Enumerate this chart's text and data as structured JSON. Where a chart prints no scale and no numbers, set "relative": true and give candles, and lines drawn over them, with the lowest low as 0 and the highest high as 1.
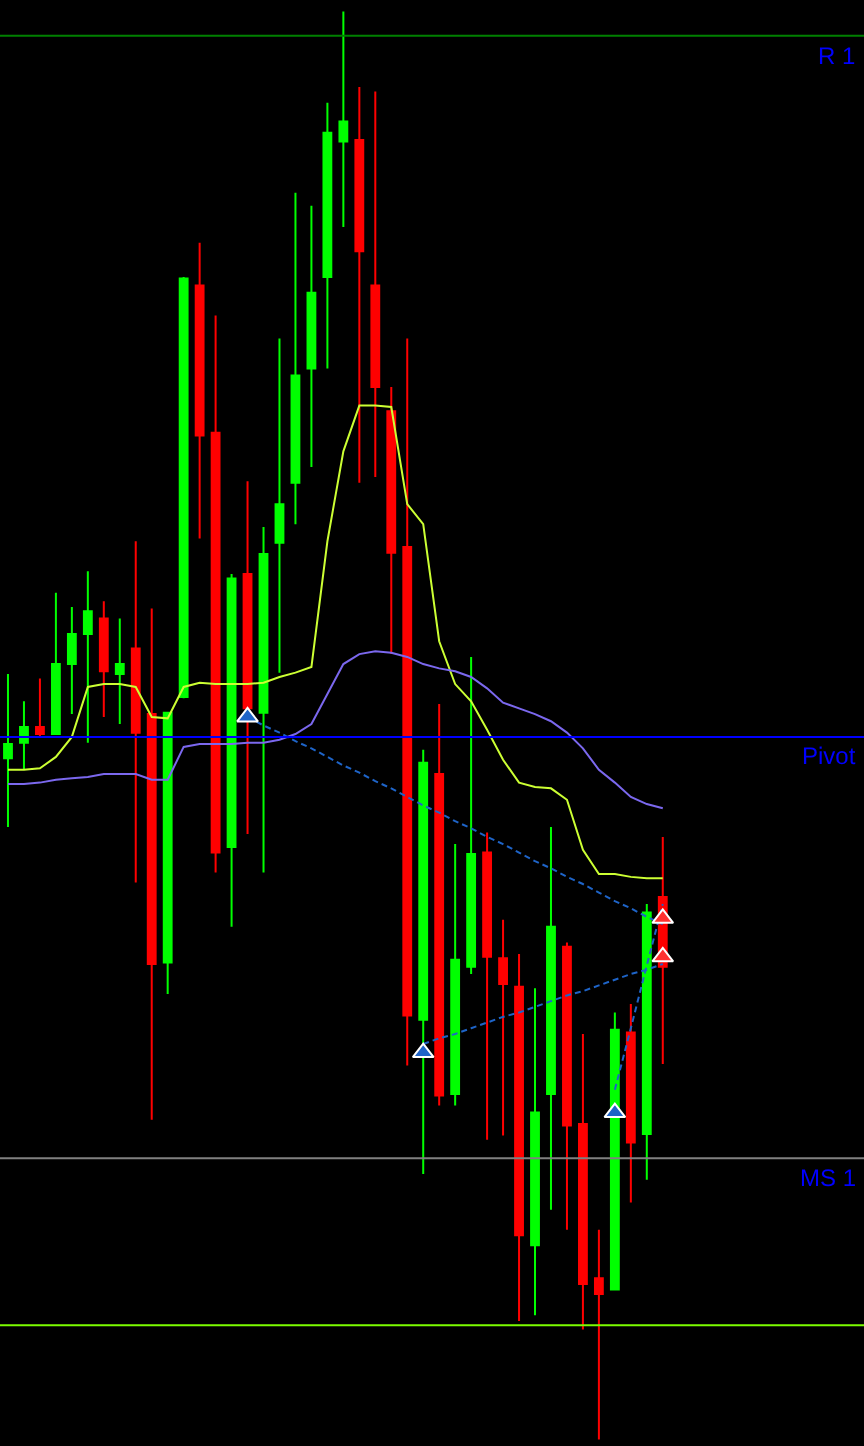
{
  "chart_data": {
    "type": "candlestick",
    "relative": true,
    "categories": [
      null,
      null,
      null,
      null,
      null,
      null,
      null,
      null,
      null,
      null,
      null,
      null,
      null,
      null,
      null,
      null,
      null,
      null,
      null,
      null,
      null,
      null,
      null,
      null,
      null,
      null,
      null,
      null,
      null,
      null,
      null,
      null,
      null,
      null,
      null,
      null,
      null,
      null,
      null,
      null,
      null,
      null
    ],
    "ohlc": [
      [
        0.477,
        0.536,
        0.429,
        0.487
      ],
      [
        0.488,
        0.517,
        0.469,
        0.499
      ],
      [
        0.499,
        0.533,
        0.492,
        0.494
      ],
      [
        0.494,
        0.593,
        0.494,
        0.543
      ],
      [
        0.543,
        0.583,
        0.508,
        0.564
      ],
      [
        0.564,
        0.608,
        0.488,
        0.58
      ],
      [
        0.575,
        0.587,
        0.506,
        0.538
      ],
      [
        0.536,
        0.575,
        0.501,
        0.543
      ],
      [
        0.554,
        0.629,
        0.39,
        0.495
      ],
      [
        0.508,
        0.582,
        0.224,
        0.333
      ],
      [
        0.334,
        0.509,
        0.312,
        0.509
      ],
      [
        0.52,
        0.814,
        0.519,
        0.813
      ],
      [
        0.808,
        0.838,
        0.631,
        0.703
      ],
      [
        0.705,
        0.787,
        0.397,
        0.411
      ],
      [
        0.415,
        0.606,
        0.359,
        0.603
      ],
      [
        0.606,
        0.671,
        0.424,
        0.512
      ],
      [
        0.509,
        0.639,
        0.397,
        0.62
      ],
      [
        0.628,
        0.771,
        0.537,
        0.655
      ],
      [
        0.67,
        0.873,
        0.641,
        0.745
      ],
      [
        0.75,
        0.864,
        0.681,
        0.803
      ],
      [
        0.814,
        0.936,
        0.75,
        0.915
      ],
      [
        0.909,
        1.0,
        0.849,
        0.923
      ],
      [
        0.91,
        0.947,
        0.67,
        0.832
      ],
      [
        0.808,
        0.944,
        0.674,
        0.737
      ],
      [
        0.72,
        0.737,
        0.55,
        0.621
      ],
      [
        0.625,
        0.771,
        0.262,
        0.297
      ],
      [
        0.294,
        0.483,
        0.186,
        0.474
      ],
      [
        0.466,
        0.515,
        0.234,
        0.241
      ],
      [
        0.242,
        0.417,
        0.234,
        0.336
      ],
      [
        0.331,
        0.548,
        0.326,
        0.41
      ],
      [
        0.411,
        0.425,
        0.21,
        0.338
      ],
      [
        0.337,
        0.364,
        0.213,
        0.319
      ],
      [
        0.317,
        0.34,
        0.083,
        0.143
      ],
      [
        0.136,
        0.316,
        0.087,
        0.229
      ],
      [
        0.242,
        0.429,
        0.161,
        0.359
      ],
      [
        0.345,
        0.348,
        0.147,
        0.22
      ],
      [
        0.221,
        0.284,
        0.077,
        0.109
      ],
      [
        0.113,
        0.147,
        0.0,
        0.102
      ],
      [
        0.105,
        0.299,
        0.105,
        0.287
      ],
      [
        0.285,
        0.305,
        0.166,
        0.208
      ],
      [
        0.214,
        0.375,
        0.182,
        0.369
      ],
      [
        0.38,
        0.422,
        0.263,
        0.331
      ]
    ],
    "colors": [
      "#00ff00",
      "#00ff00",
      "#ff0000",
      "#00ff00",
      "#00ff00",
      "#00ff00",
      "#ff0000",
      "#00ff00",
      "#ff0000",
      "#ff0000",
      "#00ff00",
      "#00ff00",
      "#ff0000",
      "#ff0000",
      "#00ff00",
      "#ff0000",
      "#00ff00",
      "#00ff00",
      "#00ff00",
      "#00ff00",
      "#00ff00",
      "#00ff00",
      "#ff0000",
      "#ff0000",
      "#ff0000",
      "#ff0000",
      "#00ff00",
      "#ff0000",
      "#00ff00",
      "#00ff00",
      "#ff0000",
      "#ff0000",
      "#ff0000",
      "#00ff00",
      "#00ff00",
      "#ff0000",
      "#ff0000",
      "#ff0000",
      "#00ff00",
      "#ff0000",
      "#00ff00",
      "#ff0000"
    ],
    "series": [
      {
        "type": "line",
        "color": "#ccff33",
        "line_style": "solid",
        "values": [
          0.469,
          0.469,
          0.47,
          0.478,
          0.492,
          0.527,
          0.529,
          0.529,
          0.527,
          0.506,
          0.505,
          0.527,
          0.53,
          0.529,
          0.529,
          0.529,
          0.53,
          0.534,
          0.537,
          0.541,
          0.629,
          0.692,
          0.724,
          0.724,
          0.723,
          0.655,
          0.641,
          0.559,
          0.529,
          0.517,
          0.497,
          0.476,
          0.46,
          0.457,
          0.456,
          0.448,
          0.413,
          0.396,
          0.396,
          0.394,
          0.393,
          0.393
        ]
      },
      {
        "type": "line",
        "color": "#7b68ee",
        "line_style": "solid",
        "values": [
          0.459,
          0.459,
          0.46,
          0.462,
          0.463,
          0.464,
          0.466,
          0.466,
          0.466,
          0.462,
          0.462,
          0.485,
          0.487,
          0.487,
          0.487,
          0.488,
          0.488,
          0.49,
          0.494,
          0.501,
          0.522,
          0.543,
          0.55,
          0.552,
          0.551,
          0.548,
          0.543,
          0.54,
          0.538,
          0.534,
          0.526,
          0.516,
          0.512,
          0.508,
          0.503,
          0.495,
          0.484,
          0.469,
          0.46,
          0.45,
          0.445,
          0.442
        ]
      },
      {
        "type": "line",
        "color": "#1e64c8",
        "line_style": "dashed",
        "values": [
          null,
          null,
          null,
          null,
          null,
          null,
          null,
          null,
          null,
          null,
          null,
          null,
          null,
          null,
          null,
          0.506,
          0.5,
          0.495,
          0.489,
          0.484,
          0.478,
          0.472,
          0.467,
          0.461,
          0.456,
          0.45,
          0.444,
          0.439,
          0.433,
          0.428,
          0.422,
          0.417,
          0.411,
          0.405,
          0.4,
          0.394,
          0.389,
          0.383,
          0.377,
          0.372,
          0.366,
          0.361
        ]
      },
      {
        "type": "line",
        "color": "#1e64c8",
        "line_style": "dashed",
        "values": [
          null,
          null,
          null,
          null,
          null,
          null,
          null,
          null,
          null,
          null,
          null,
          null,
          null,
          null,
          null,
          null,
          null,
          null,
          null,
          null,
          null,
          null,
          null,
          null,
          null,
          null,
          0.277,
          0.281,
          0.284,
          0.288,
          0.292,
          0.296,
          0.299,
          0.303,
          0.307,
          0.311,
          0.314,
          0.318,
          0.322,
          0.326,
          0.329,
          0.333
        ]
      },
      {
        "type": "line",
        "color": "#1e64c8",
        "line_style": "dashed",
        "values": [
          null,
          null,
          null,
          null,
          null,
          null,
          null,
          null,
          null,
          null,
          null,
          null,
          null,
          null,
          null,
          null,
          null,
          null,
          null,
          null,
          null,
          null,
          null,
          null,
          null,
          null,
          null,
          null,
          null,
          null,
          null,
          null,
          null,
          null,
          null,
          null,
          null,
          null,
          0.245,
          0.288,
          0.332,
          0.375
        ]
      },
      {
        "type": "scatter",
        "color": "#1e64c8",
        "marker": "triangle",
        "values": [
          null,
          null,
          null,
          null,
          null,
          null,
          null,
          null,
          null,
          null,
          null,
          null,
          null,
          null,
          null,
          0.506,
          null,
          null,
          null,
          null,
          null,
          null,
          null,
          null,
          null,
          null,
          0.271,
          null,
          null,
          null,
          null,
          null,
          null,
          null,
          null,
          null,
          null,
          null,
          0.229,
          null,
          null,
          null
        ]
      },
      {
        "type": "scatter",
        "color": "#ff3030",
        "marker": "triangle",
        "values": [
          null,
          null,
          null,
          null,
          null,
          null,
          null,
          null,
          null,
          null,
          null,
          null,
          null,
          null,
          null,
          null,
          null,
          null,
          null,
          null,
          null,
          null,
          null,
          null,
          null,
          null,
          null,
          null,
          null,
          null,
          null,
          null,
          null,
          null,
          null,
          null,
          null,
          null,
          null,
          null,
          null,
          0.365
        ]
      },
      {
        "type": "scatter",
        "color": "#ff3030",
        "marker": "triangle",
        "values": [
          null,
          null,
          null,
          null,
          null,
          null,
          null,
          null,
          null,
          null,
          null,
          null,
          null,
          null,
          null,
          null,
          null,
          null,
          null,
          null,
          null,
          null,
          null,
          null,
          null,
          null,
          null,
          null,
          null,
          null,
          null,
          null,
          null,
          null,
          null,
          null,
          null,
          null,
          null,
          null,
          null,
          0.338
        ]
      }
    ],
    "ref_lines": [
      {
        "axis": "y",
        "value": 0.983,
        "label": "R 1",
        "color": "#008000"
      },
      {
        "axis": "y",
        "value": 0.492,
        "label": "Pivot",
        "color": "#0000ff"
      },
      {
        "axis": "y",
        "value": 0.197,
        "label": "MS 1",
        "color": "#808080"
      },
      {
        "axis": "y",
        "value": 0.08,
        "color": "#7cfc00"
      }
    ]
  }
}
